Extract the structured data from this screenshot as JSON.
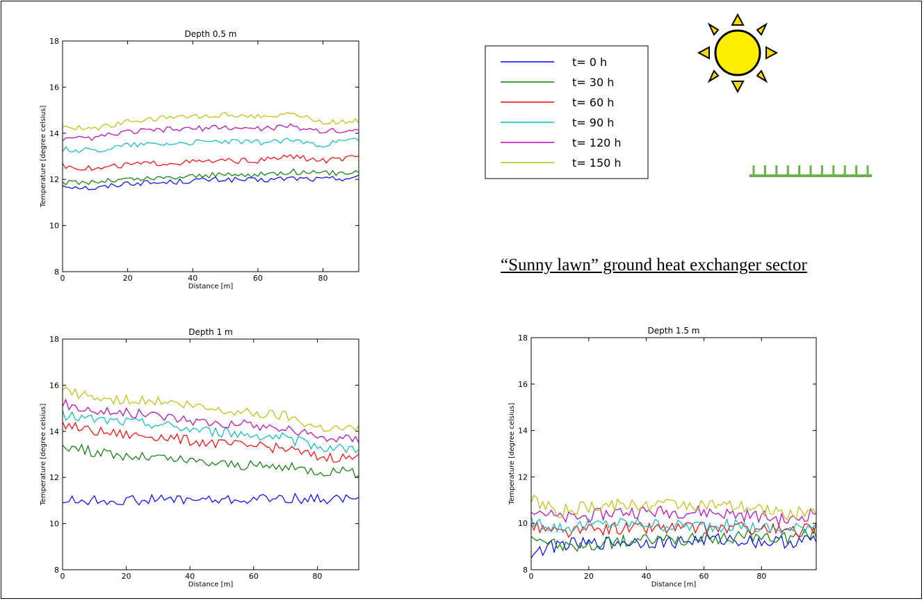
{
  "caption": "“Sunny lawn” ground heat exchanger sector",
  "legend": {
    "entries": [
      "t= 0 h",
      "t= 30 h",
      "t= 60 h",
      "t= 90 h",
      "t= 120 h",
      "t= 150 h"
    ],
    "colors": [
      "#0000ff",
      "#008000",
      "#ff0000",
      "#00bfbf",
      "#bf00bf",
      "#bfbf00"
    ]
  },
  "icons": [
    "sun-icon",
    "grass-icon"
  ],
  "chart_data": [
    {
      "type": "line",
      "title": "Depth 0.5 m",
      "xlabel": "Distance [m]",
      "ylabel": "Temperature [degree celsius]",
      "xlim": [
        0,
        91
      ],
      "ylim": [
        8,
        18
      ],
      "xticks": [
        0,
        20,
        40,
        60,
        80
      ],
      "yticks": [
        8,
        10,
        12,
        14,
        16,
        18
      ],
      "x": [
        0,
        10,
        20,
        30,
        40,
        50,
        60,
        70,
        80,
        91
      ],
      "series": [
        {
          "name": "t= 0 h",
          "values": [
            11.75,
            11.6,
            11.85,
            11.85,
            11.95,
            12.0,
            11.95,
            12.05,
            12.0,
            12.1
          ]
        },
        {
          "name": "t= 30 h",
          "values": [
            11.85,
            11.9,
            12.0,
            12.05,
            12.15,
            12.2,
            12.2,
            12.35,
            12.25,
            12.35
          ]
        },
        {
          "name": "t= 60 h",
          "values": [
            12.6,
            12.45,
            12.65,
            12.7,
            12.75,
            12.8,
            12.8,
            13.0,
            12.8,
            12.95
          ]
        },
        {
          "name": "t= 90 h",
          "values": [
            13.3,
            13.25,
            13.5,
            13.55,
            13.6,
            13.65,
            13.6,
            13.7,
            13.5,
            13.75
          ]
        },
        {
          "name": "t= 120 h",
          "values": [
            13.7,
            13.8,
            14.05,
            14.15,
            14.2,
            14.25,
            14.2,
            14.3,
            14.1,
            14.1
          ]
        },
        {
          "name": "t= 150 h",
          "values": [
            14.25,
            14.2,
            14.5,
            14.65,
            14.75,
            14.8,
            14.75,
            14.85,
            14.45,
            14.55
          ]
        }
      ]
    },
    {
      "type": "line",
      "title": "Depth 1 m",
      "xlabel": "Distance [m]",
      "ylabel": "Temperature [degree celsius]",
      "xlim": [
        0,
        93
      ],
      "ylim": [
        8,
        18
      ],
      "xticks": [
        0,
        20,
        40,
        60,
        80
      ],
      "yticks": [
        8,
        10,
        12,
        14,
        16,
        18
      ],
      "x": [
        0,
        10,
        20,
        30,
        40,
        50,
        60,
        70,
        80,
        93
      ],
      "series": [
        {
          "name": "t= 0 h",
          "values": [
            11.0,
            11.0,
            11.0,
            11.05,
            11.05,
            11.0,
            11.05,
            11.1,
            11.05,
            11.1
          ]
        },
        {
          "name": "t= 30 h",
          "values": [
            13.4,
            13.1,
            12.9,
            12.85,
            12.7,
            12.6,
            12.5,
            12.45,
            12.3,
            12.2
          ]
        },
        {
          "name": "t= 60 h",
          "values": [
            14.3,
            14.0,
            13.85,
            13.8,
            13.6,
            13.45,
            13.35,
            13.25,
            12.9,
            12.85
          ]
        },
        {
          "name": "t= 90 h",
          "values": [
            14.7,
            14.5,
            14.4,
            14.3,
            14.1,
            13.95,
            13.85,
            13.7,
            13.35,
            13.2
          ]
        },
        {
          "name": "t= 120 h",
          "values": [
            15.2,
            14.9,
            14.8,
            14.7,
            14.5,
            14.35,
            14.25,
            14.1,
            13.75,
            13.65
          ]
        },
        {
          "name": "t= 150 h",
          "values": [
            15.8,
            15.4,
            15.35,
            15.3,
            15.1,
            14.9,
            14.8,
            14.7,
            14.2,
            14.1
          ]
        }
      ]
    },
    {
      "type": "line",
      "title": "Depth 1.5 m",
      "xlabel": "Distance [m]",
      "ylabel": "Temperature [degree celsius]",
      "xlim": [
        0,
        99
      ],
      "ylim": [
        8,
        18
      ],
      "xticks": [
        0,
        20,
        40,
        60,
        80
      ],
      "yticks": [
        8,
        10,
        12,
        14,
        16,
        18
      ],
      "x": [
        0,
        10,
        20,
        30,
        40,
        50,
        60,
        70,
        80,
        90,
        99
      ],
      "series": [
        {
          "name": "t= 0 h",
          "values": [
            8.7,
            9.1,
            9.1,
            9.2,
            9.2,
            9.2,
            9.3,
            9.3,
            9.2,
            9.2,
            9.3
          ]
        },
        {
          "name": "t= 30 h",
          "values": [
            9.5,
            9.0,
            9.0,
            9.2,
            9.3,
            9.3,
            9.3,
            9.4,
            9.4,
            9.4,
            9.6
          ]
        },
        {
          "name": "t= 60 h",
          "values": [
            9.9,
            9.6,
            9.7,
            9.8,
            9.8,
            9.8,
            9.8,
            9.8,
            9.8,
            9.6,
            9.8
          ]
        },
        {
          "name": "t= 90 h",
          "values": [
            10.1,
            9.8,
            9.9,
            10.0,
            10.0,
            9.9,
            9.9,
            9.9,
            9.8,
            9.7,
            10.0
          ]
        },
        {
          "name": "t= 120 h",
          "values": [
            10.7,
            10.2,
            10.3,
            10.5,
            10.5,
            10.5,
            10.5,
            10.4,
            10.3,
            10.1,
            10.5
          ]
        },
        {
          "name": "t= 150 h",
          "values": [
            11.0,
            10.5,
            10.7,
            10.8,
            10.8,
            10.85,
            10.8,
            10.7,
            10.6,
            10.4,
            10.6
          ]
        }
      ]
    }
  ]
}
